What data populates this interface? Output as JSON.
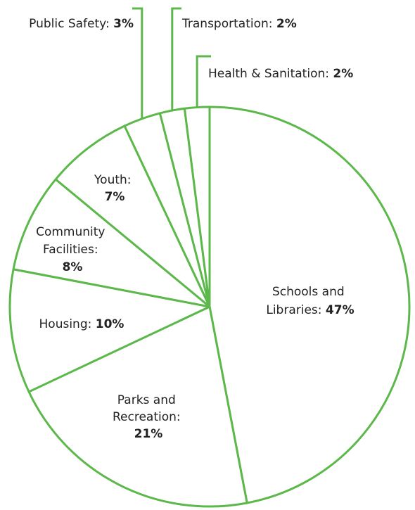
{
  "chart_data": {
    "type": "pie",
    "title": "",
    "accent_color": "#5cb84a",
    "slices": [
      {
        "label": "Schools and Libraries:",
        "value": 47,
        "display": "47%"
      },
      {
        "label": "Parks and Recreation:",
        "value": 21,
        "display": "21%"
      },
      {
        "label": "Housing:",
        "value": 10,
        "display": "10%"
      },
      {
        "label": "Community Facilities:",
        "value": 8,
        "display": "8%"
      },
      {
        "label": "Youth:",
        "value": 7,
        "display": "7%"
      },
      {
        "label": "Public Safety:",
        "value": 3,
        "display": "3%"
      },
      {
        "label": "Transportation:",
        "value": 2,
        "display": "2%"
      },
      {
        "label": "Health & Sanitation:",
        "value": 2,
        "display": "2%"
      }
    ]
  }
}
